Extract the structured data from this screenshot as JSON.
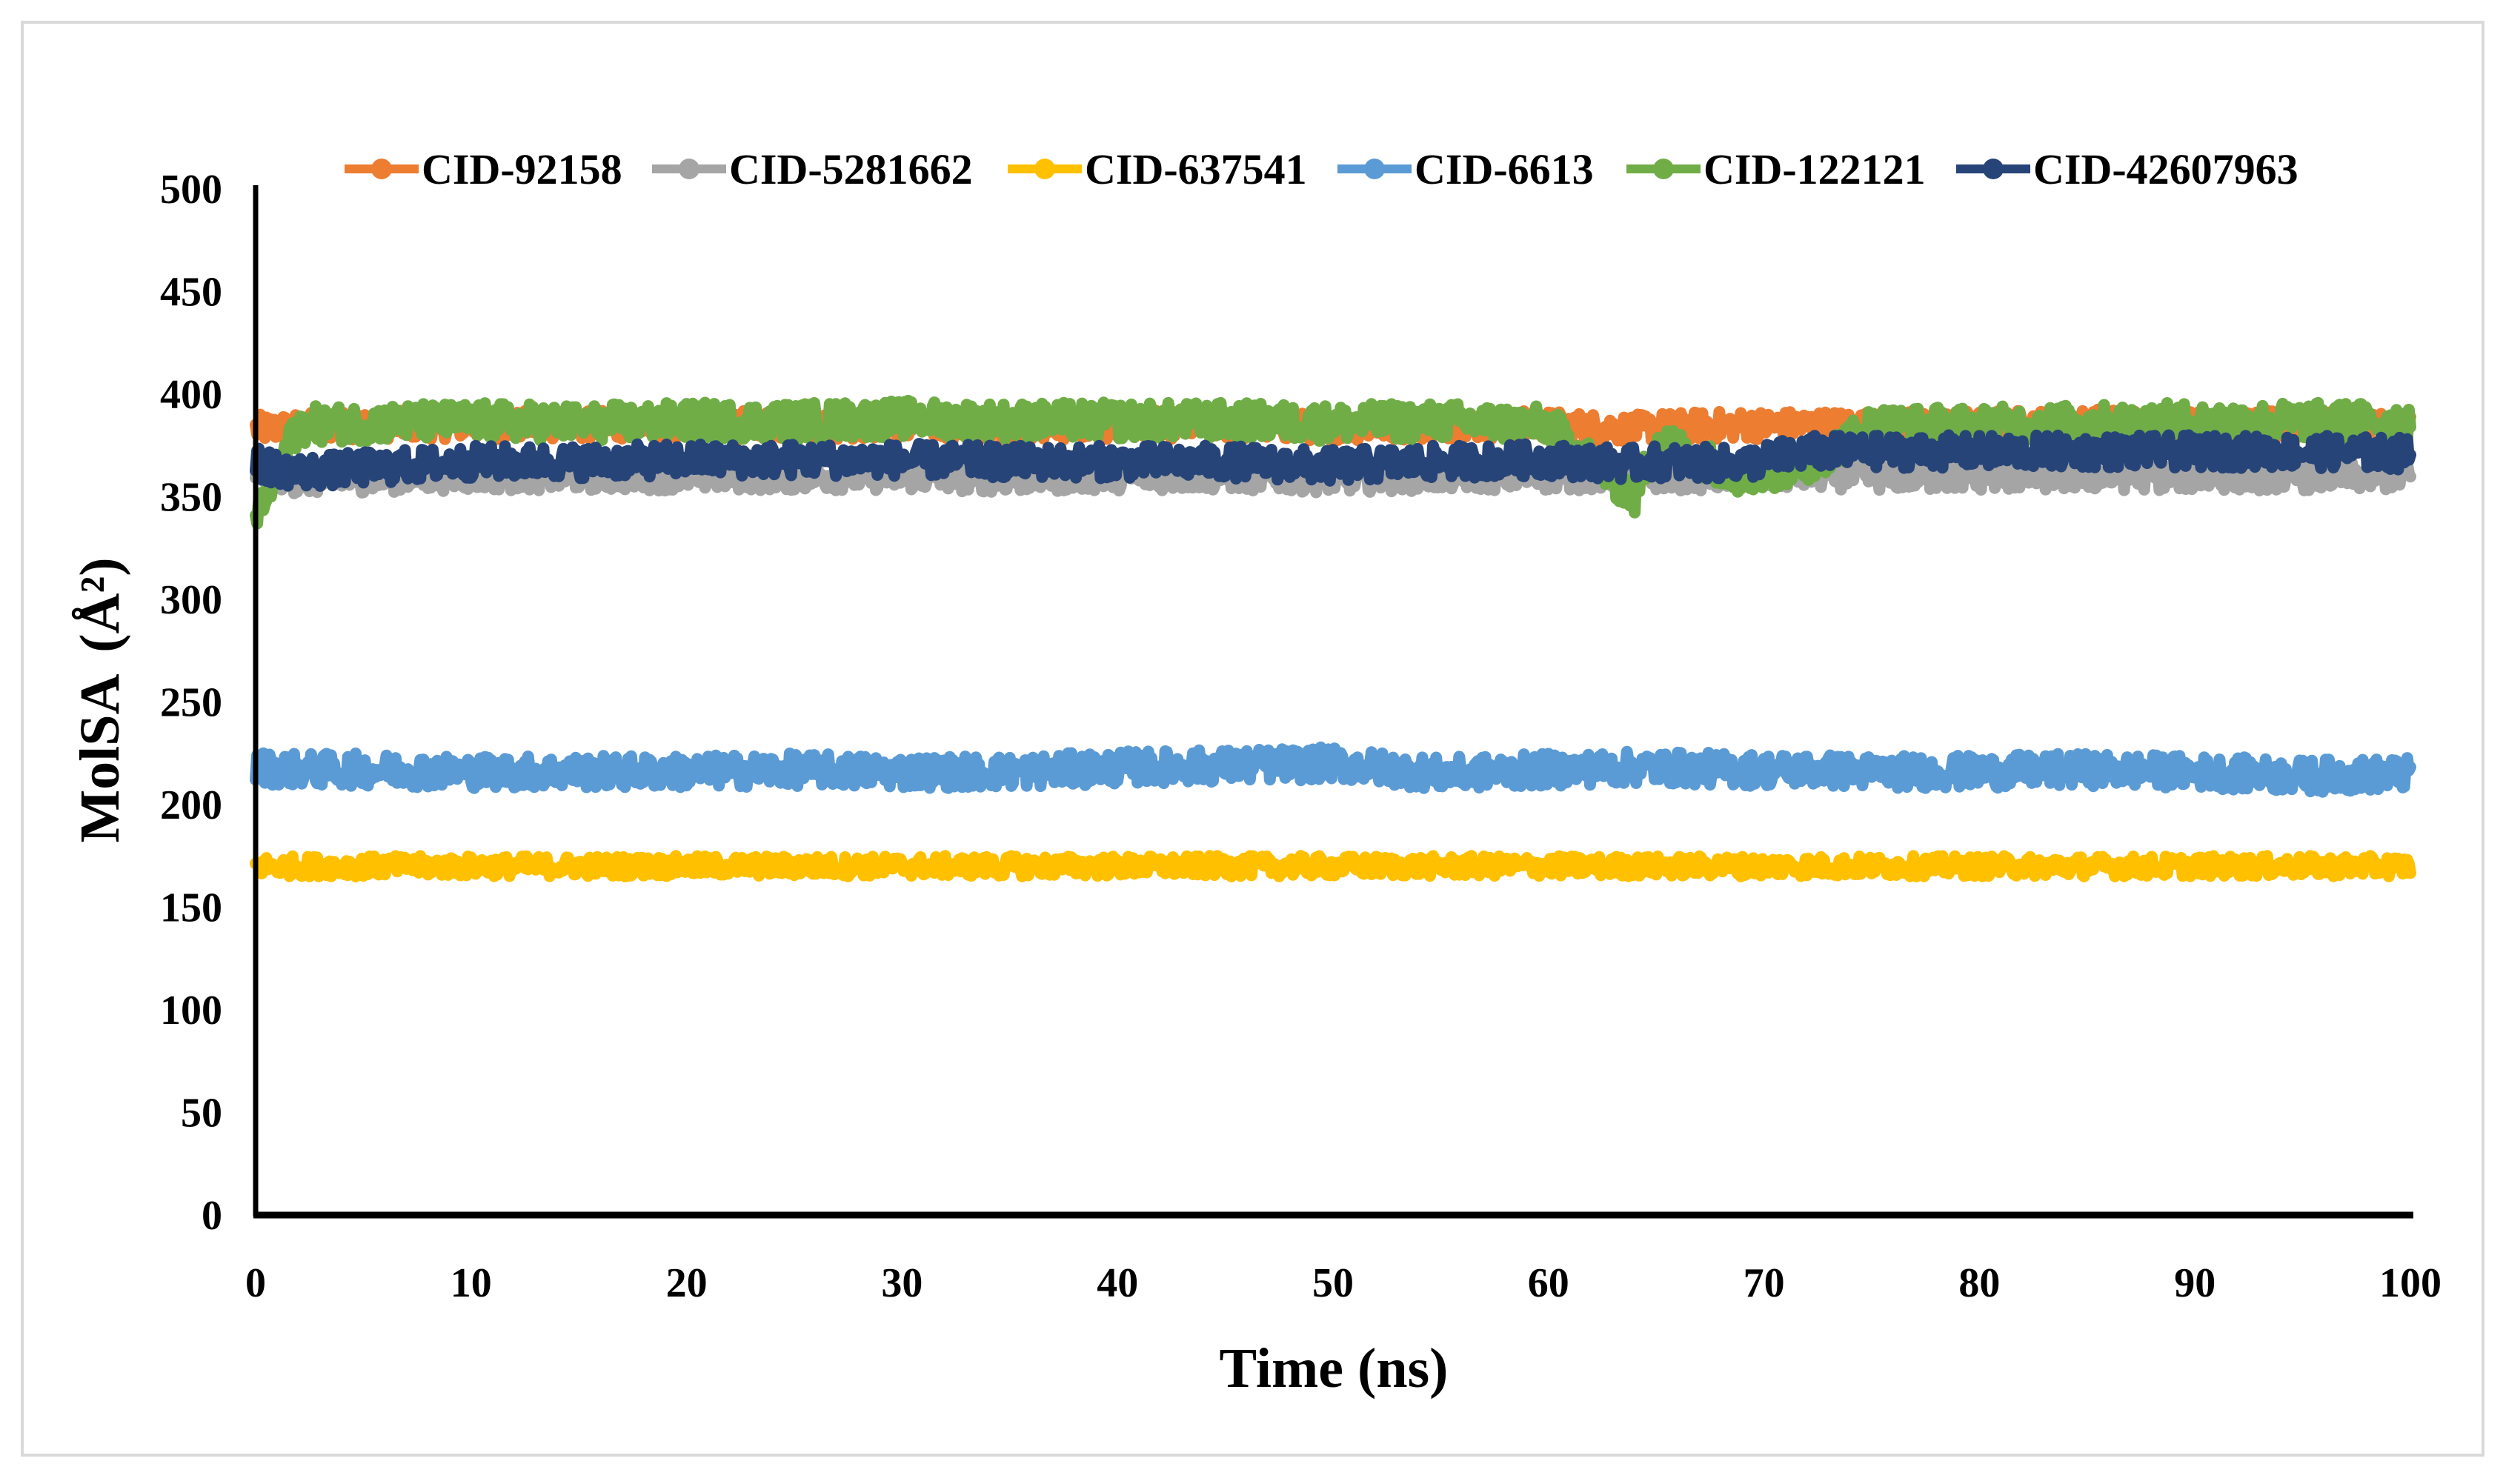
{
  "chart_data": {
    "type": "line",
    "title": "",
    "xlabel": "Time (ns)",
    "ylabel": "MolSA (Å²)",
    "xlim": [
      0,
      100
    ],
    "ylim": [
      0,
      500
    ],
    "x_ticks": [
      "0",
      "10",
      "20",
      "30",
      "40",
      "50",
      "60",
      "70",
      "80",
      "90",
      "100"
    ],
    "y_ticks": [
      "0",
      "50",
      "100",
      "150",
      "200",
      "250",
      "300",
      "350",
      "400",
      "450",
      "500"
    ],
    "grid": false,
    "legend_position": "top",
    "x": [
      0,
      2,
      5,
      10,
      15,
      20,
      25,
      30,
      35,
      40,
      45,
      50,
      55,
      60,
      64,
      65,
      69,
      72,
      75,
      80,
      85,
      90,
      95,
      100
    ],
    "series": [
      {
        "name": "CID-92158",
        "color": "#ED7D31",
        "values": [
          383,
          384,
          385,
          385,
          385,
          385,
          385,
          385,
          384,
          385,
          385,
          384,
          385,
          385,
          383,
          384,
          385,
          385,
          385,
          385,
          386,
          385,
          385,
          385
        ]
      },
      {
        "name": "CID-5281662",
        "color": "#A5A5A5",
        "values": [
          362,
          358,
          359,
          360,
          360,
          360,
          360,
          360,
          359,
          360,
          360,
          359,
          360,
          360,
          360,
          360,
          360,
          361,
          360,
          360,
          360,
          360,
          360,
          360
        ]
      },
      {
        "name": "CID-637541",
        "color": "#FFC000",
        "values": [
          170,
          170,
          170,
          170,
          170,
          170,
          170,
          170,
          170,
          170,
          170,
          170,
          170,
          170,
          170,
          170,
          170,
          170,
          170,
          170,
          170,
          170,
          170,
          170
        ]
      },
      {
        "name": "CID-6613",
        "color": "#5B9BD5",
        "values": [
          218,
          217,
          217,
          216,
          216,
          216,
          217,
          216,
          216,
          218,
          219,
          220,
          215,
          217,
          218,
          218,
          217,
          217,
          216,
          216,
          217,
          216,
          214,
          215
        ]
      },
      {
        "name": "CID-122121",
        "color": "#70AD47",
        "values": [
          340,
          385,
          386,
          387,
          386,
          387,
          387,
          388,
          387,
          387,
          387,
          386,
          387,
          385,
          350,
          378,
          360,
          365,
          385,
          385,
          386,
          387,
          387,
          387
        ]
      },
      {
        "name": "CID-42607963",
        "color": "#264478",
        "values": [
          366,
          362,
          364,
          367,
          367,
          368,
          368,
          368,
          367,
          367,
          367,
          365,
          367,
          368,
          366,
          367,
          366,
          372,
          372,
          372,
          372,
          372,
          372,
          371
        ]
      }
    ]
  },
  "legend": {
    "items": [
      {
        "label": "CID-92158",
        "color": "#ED7D31"
      },
      {
        "label": "CID-5281662",
        "color": "#A5A5A5"
      },
      {
        "label": "CID-637541",
        "color": "#FFC000"
      },
      {
        "label": "CID-6613",
        "color": "#5B9BD5"
      },
      {
        "label": "CID-122121",
        "color": "#70AD47"
      },
      {
        "label": "CID-42607963",
        "color": "#264478"
      }
    ]
  },
  "axes": {
    "x_title": "Time (ns)",
    "y_title": "MolSA",
    "y_unit": "(Å²)"
  }
}
